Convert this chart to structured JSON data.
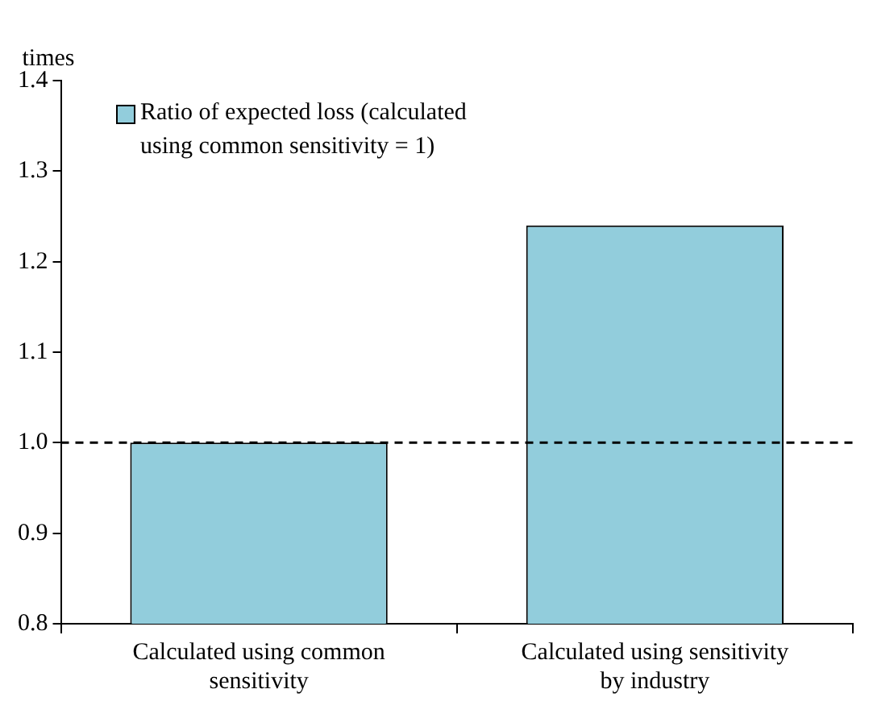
{
  "chart_data": {
    "type": "bar",
    "ylabel": "times",
    "categories": [
      "Calculated using common sensitivity",
      "Calculated using sensitivity by industry"
    ],
    "series": [
      {
        "name": "Ratio of expected loss (calculated using common sensitivity = 1)",
        "color": "#92cddc",
        "values": [
          1.0,
          1.24
        ]
      }
    ],
    "ylim": [
      0.8,
      1.4
    ],
    "yticks": [
      {
        "value": 0.8,
        "label": "0.8"
      },
      {
        "value": 0.9,
        "label": "0.9"
      },
      {
        "value": 1.0,
        "label": "1.0"
      },
      {
        "value": 1.1,
        "label": "1.1"
      },
      {
        "value": 1.2,
        "label": "1.2"
      },
      {
        "value": 1.3,
        "label": "1.3"
      },
      {
        "value": 1.4,
        "label": "1.4"
      }
    ],
    "ref_lines": [
      {
        "axis": "y",
        "value": 1.0,
        "color": "#000000",
        "line_style": "dashed"
      }
    ],
    "legend": "top left",
    "grid": false
  }
}
